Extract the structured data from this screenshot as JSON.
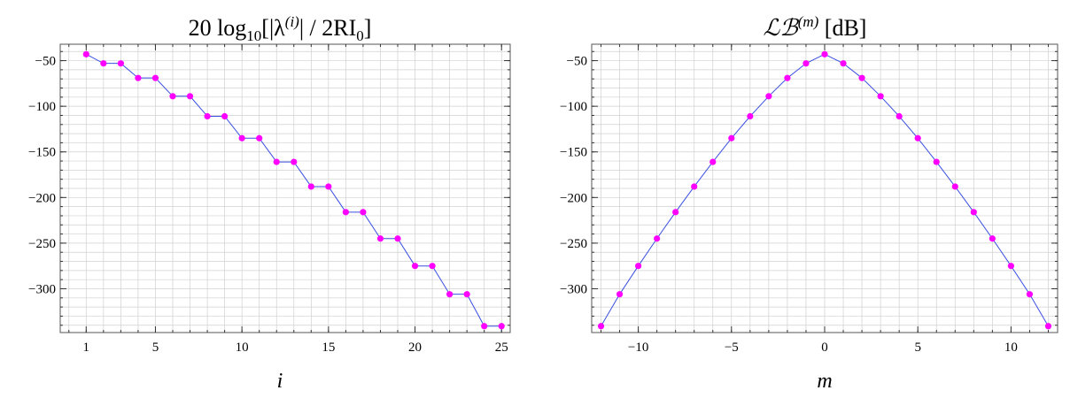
{
  "colors": {
    "line": "#3a4fe0",
    "point": "#ff00ff",
    "grid": "#d0d0d0"
  },
  "chart_data": [
    {
      "type": "line",
      "title": {
        "prefix": "20 log",
        "sub": "10",
        "mid": "[|λ",
        "sup": "(i)",
        "rest": "| / 2RI",
        "sub2": "0",
        "end": "]"
      },
      "xlabel": "i",
      "ylabel": "",
      "xlim": [
        -0.5,
        25.5
      ],
      "ylim": [
        -348,
        -32
      ],
      "grid": true,
      "x_ticks": [
        1,
        5,
        10,
        15,
        20,
        25
      ],
      "y_ticks": [
        -50,
        -100,
        -150,
        -200,
        -250,
        -300
      ],
      "x_tick_labels": [
        "1",
        "5",
        "10",
        "15",
        "20",
        "25"
      ],
      "y_tick_labels": [
        "−50",
        "−100",
        "−150",
        "−200",
        "−250",
        "−300"
      ],
      "x": [
        1,
        2,
        3,
        4,
        5,
        6,
        7,
        8,
        9,
        10,
        11,
        12,
        13,
        14,
        15,
        16,
        17,
        18,
        19,
        20,
        21,
        22,
        23,
        24,
        25
      ],
      "y": [
        -43,
        -53,
        -53,
        -69,
        -69,
        -89,
        -89,
        -111,
        -111,
        -135,
        -135,
        -161,
        -161,
        -188,
        -188,
        -216,
        -216,
        -245,
        -245,
        -275,
        -275,
        -306,
        -306,
        -341,
        -341
      ]
    },
    {
      "type": "line",
      "title": {
        "prefix": "ℒℬ",
        "sup": "(m)",
        "end": " [dB]"
      },
      "xlabel": "m",
      "ylabel": "",
      "xlim": [
        -12.5,
        12.5
      ],
      "ylim": [
        -348,
        -32
      ],
      "grid": true,
      "x_ticks": [
        -10,
        -5,
        0,
        5,
        10
      ],
      "y_ticks": [
        -50,
        -100,
        -150,
        -200,
        -250,
        -300
      ],
      "x_tick_labels": [
        "−10",
        "−5",
        "0",
        "5",
        "10"
      ],
      "y_tick_labels": [
        "−50",
        "−100",
        "−150",
        "−200",
        "−250",
        "−300"
      ],
      "x": [
        -12,
        -11,
        -10,
        -9,
        -8,
        -7,
        -6,
        -5,
        -4,
        -3,
        -2,
        -1,
        0,
        1,
        2,
        3,
        4,
        5,
        6,
        7,
        8,
        9,
        10,
        11,
        12
      ],
      "y": [
        -341,
        -306,
        -275,
        -245,
        -216,
        -188,
        -161,
        -135,
        -111,
        -89,
        -69,
        -53,
        -43,
        -53,
        -69,
        -89,
        -111,
        -135,
        -161,
        -188,
        -216,
        -245,
        -275,
        -306,
        -341
      ]
    }
  ]
}
